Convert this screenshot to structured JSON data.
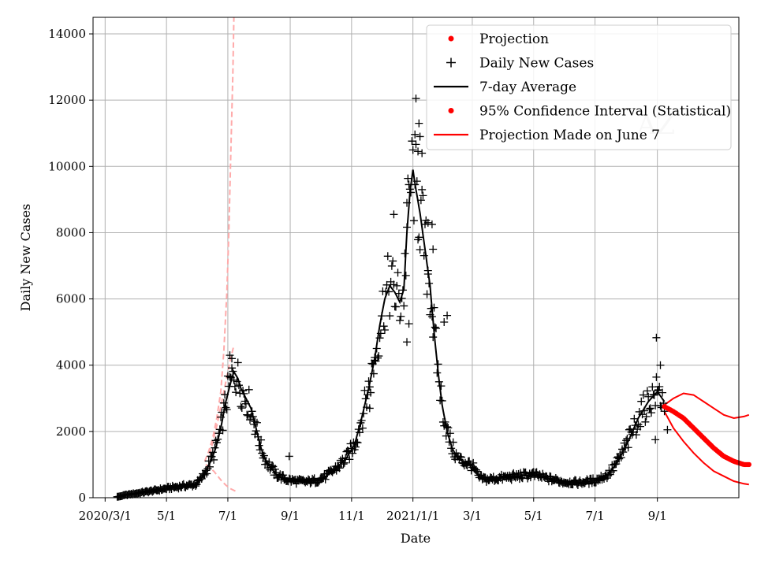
{
  "chart_data": {
    "type": "line",
    "title": "",
    "watermark": "AZ",
    "xlabel": "Date",
    "ylabel": "Daily New Cases",
    "xlim": [
      -12,
      630
    ],
    "ylim": [
      0,
      14500
    ],
    "grid": true,
    "x_unit": "days since 2020-03-01",
    "x_ticks": [
      {
        "value": 0,
        "label": "2020/3/1"
      },
      {
        "value": 61,
        "label": "5/1"
      },
      {
        "value": 122,
        "label": "7/1"
      },
      {
        "value": 184,
        "label": "9/1"
      },
      {
        "value": 245,
        "label": "11/1"
      },
      {
        "value": 306,
        "label": "2021/1/1"
      },
      {
        "value": 365,
        "label": "3/1"
      },
      {
        "value": 426,
        "label": "5/1"
      },
      {
        "value": 487,
        "label": "7/1"
      },
      {
        "value": 549,
        "label": "9/1"
      }
    ],
    "y_ticks": [
      0,
      2000,
      4000,
      6000,
      8000,
      10000,
      12000,
      14000
    ],
    "legend_position": "top-right",
    "legend": [
      {
        "label": "Projection",
        "kind": "dot",
        "color": "#ff0000"
      },
      {
        "label": "Daily New Cases",
        "kind": "plus",
        "color": "#000000"
      },
      {
        "label": "7-day Average",
        "kind": "line",
        "color": "#000000"
      },
      {
        "label": "95% Confidence Interval (Statistical)",
        "kind": "dot",
        "color": "#ff0000"
      },
      {
        "label": "Projection Made on June 7",
        "kind": "line",
        "color": "#ff0000"
      }
    ],
    "series": [
      {
        "name": "7-day Average",
        "color": "#000000",
        "anchors": [
          [
            12,
            20
          ],
          [
            20,
            80
          ],
          [
            35,
            150
          ],
          [
            50,
            220
          ],
          [
            65,
            300
          ],
          [
            80,
            360
          ],
          [
            90,
            400
          ],
          [
            95,
            550
          ],
          [
            100,
            800
          ],
          [
            105,
            1100
          ],
          [
            110,
            1500
          ],
          [
            115,
            2100
          ],
          [
            120,
            2900
          ],
          [
            125,
            3500
          ],
          [
            128,
            3800
          ],
          [
            132,
            3600
          ],
          [
            135,
            3300
          ],
          [
            140,
            3000
          ],
          [
            145,
            2700
          ],
          [
            150,
            2100
          ],
          [
            155,
            1500
          ],
          [
            160,
            1100
          ],
          [
            165,
            900
          ],
          [
            170,
            700
          ],
          [
            180,
            550
          ],
          [
            190,
            500
          ],
          [
            200,
            480
          ],
          [
            210,
            520
          ],
          [
            220,
            650
          ],
          [
            230,
            900
          ],
          [
            240,
            1200
          ],
          [
            248,
            1600
          ],
          [
            255,
            2400
          ],
          [
            262,
            3300
          ],
          [
            268,
            4200
          ],
          [
            273,
            5200
          ],
          [
            278,
            6000
          ],
          [
            283,
            6400
          ],
          [
            288,
            6200
          ],
          [
            293,
            5900
          ],
          [
            297,
            6300
          ],
          [
            300,
            8000
          ],
          [
            303,
            9200
          ],
          [
            306,
            9900
          ],
          [
            309,
            9300
          ],
          [
            313,
            8600
          ],
          [
            318,
            7500
          ],
          [
            323,
            6400
          ],
          [
            327,
            5000
          ],
          [
            331,
            3800
          ],
          [
            335,
            2800
          ],
          [
            340,
            2000
          ],
          [
            345,
            1500
          ],
          [
            350,
            1200
          ],
          [
            355,
            1100
          ],
          [
            360,
            1050
          ],
          [
            365,
            950
          ],
          [
            372,
            600
          ],
          [
            380,
            550
          ],
          [
            395,
            600
          ],
          [
            410,
            650
          ],
          [
            425,
            700
          ],
          [
            440,
            580
          ],
          [
            455,
            480
          ],
          [
            470,
            450
          ],
          [
            487,
            520
          ],
          [
            500,
            700
          ],
          [
            510,
            1100
          ],
          [
            520,
            1700
          ],
          [
            530,
            2400
          ],
          [
            540,
            2900
          ],
          [
            549,
            3200
          ],
          [
            556,
            2900
          ]
        ]
      },
      {
        "name": "Daily New Cases",
        "color": "#000000",
        "marker": "+",
        "highlights": [
          [
            309,
            12050
          ],
          [
            312,
            11300
          ],
          [
            313,
            10900
          ],
          [
            311,
            10450
          ],
          [
            315,
            10400
          ],
          [
            308,
            9450
          ],
          [
            300,
            8900
          ],
          [
            321,
            8300
          ],
          [
            325,
            8250
          ],
          [
            287,
            8550
          ],
          [
            263,
            2700
          ],
          [
            268,
            4150
          ],
          [
            326,
            7500
          ],
          [
            321,
            6750
          ],
          [
            340,
            5500
          ],
          [
            337,
            5300
          ],
          [
            300,
            4700
          ],
          [
            302,
            5250
          ],
          [
            124,
            4300
          ],
          [
            126,
            4200
          ],
          [
            548,
            4830
          ],
          [
            552,
            4000
          ],
          [
            547,
            1750
          ],
          [
            559,
            2050
          ],
          [
            149,
            2300
          ],
          [
            183,
            1250
          ]
        ]
      },
      {
        "name": "Projection",
        "color": "#ff0000",
        "marker": "dot",
        "anchors": [
          [
            556,
            2750
          ],
          [
            565,
            2600
          ],
          [
            575,
            2400
          ],
          [
            585,
            2100
          ],
          [
            595,
            1800
          ],
          [
            605,
            1500
          ],
          [
            615,
            1250
          ],
          [
            625,
            1100
          ],
          [
            635,
            1000
          ],
          [
            640,
            1000
          ]
        ]
      },
      {
        "name": "95% Confidence Interval (Statistical)",
        "color": "#ff0000",
        "upper": [
          [
            556,
            2800
          ],
          [
            565,
            3000
          ],
          [
            575,
            3150
          ],
          [
            585,
            3100
          ],
          [
            595,
            2900
          ],
          [
            605,
            2700
          ],
          [
            615,
            2500
          ],
          [
            625,
            2400
          ],
          [
            635,
            2450
          ],
          [
            640,
            2500
          ]
        ],
        "lower": [
          [
            556,
            2600
          ],
          [
            565,
            2100
          ],
          [
            575,
            1700
          ],
          [
            585,
            1350
          ],
          [
            595,
            1050
          ],
          [
            605,
            800
          ],
          [
            615,
            650
          ],
          [
            625,
            500
          ],
          [
            635,
            420
          ],
          [
            640,
            400
          ]
        ]
      },
      {
        "name": "Projection Made on June 7",
        "color": "#ffaaaa",
        "style": "dashed",
        "upper": [
          [
            99,
            1100
          ],
          [
            103,
            1400
          ],
          [
            107,
            1800
          ],
          [
            111,
            2400
          ],
          [
            115,
            3200
          ],
          [
            118,
            4400
          ],
          [
            121,
            6200
          ],
          [
            123,
            8000
          ],
          [
            125,
            10500
          ],
          [
            127,
            12800
          ],
          [
            128,
            14500
          ]
        ],
        "lower": [
          [
            100,
            1000
          ],
          [
            104,
            900
          ],
          [
            108,
            800
          ],
          [
            112,
            650
          ],
          [
            116,
            500
          ],
          [
            120,
            380
          ],
          [
            124,
            280
          ],
          [
            128,
            220
          ],
          [
            131,
            180
          ]
        ],
        "mid": [
          [
            104,
            1300
          ],
          [
            108,
            1800
          ],
          [
            112,
            2300
          ],
          [
            116,
            2900
          ],
          [
            120,
            3500
          ],
          [
            124,
            4100
          ],
          [
            128,
            4600
          ]
        ]
      }
    ]
  }
}
